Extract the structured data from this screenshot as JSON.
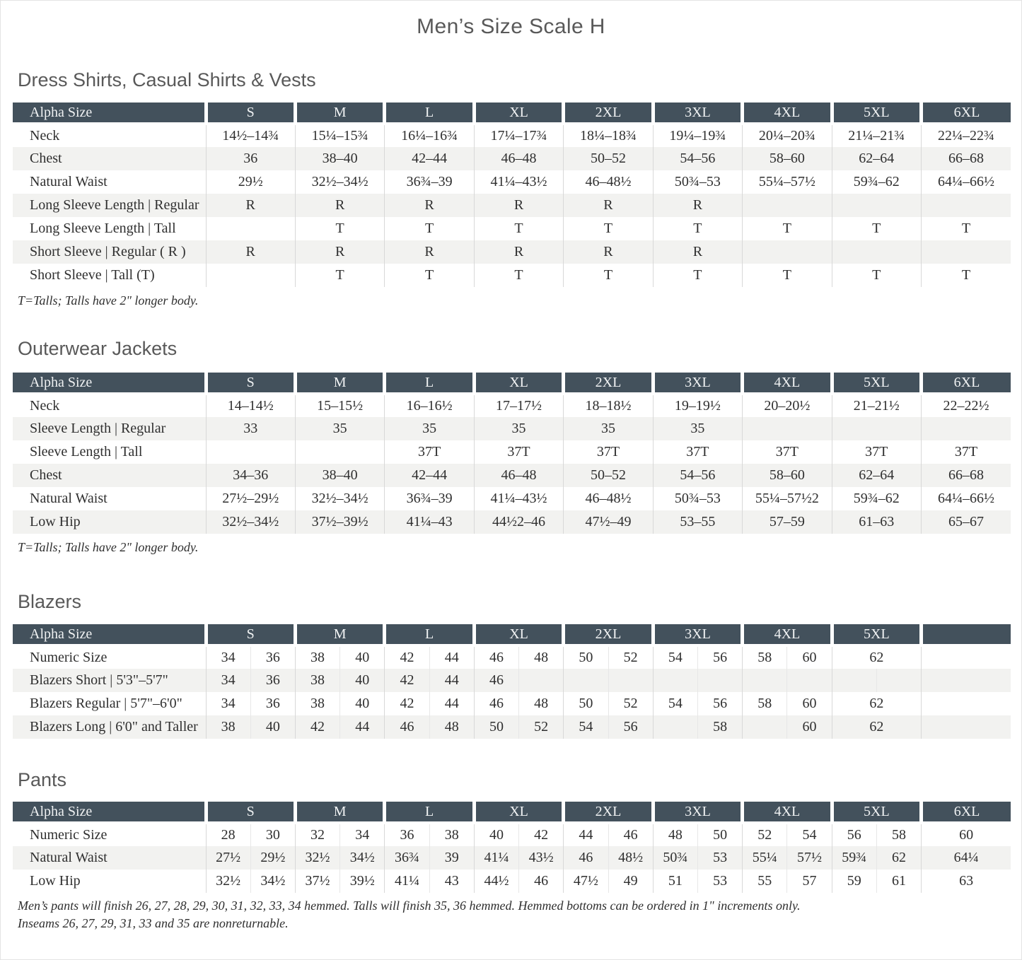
{
  "page_title": "Men’s Size Scale H",
  "colors": {
    "table_header_bg": "#43515c",
    "table_header_text": "#f0f2f3",
    "row_stripe": "#f2f2f0",
    "heading_text": "#595959",
    "body_text": "#2f2f2f"
  },
  "sections": [
    {
      "heading": "Dress Shirts, Casual Shirts & Vests",
      "columns": [
        "Alpha Size",
        "S",
        "M",
        "L",
        "XL",
        "2XL",
        "3XL",
        "4XL",
        "5XL",
        "6XL"
      ],
      "split_columns": false,
      "rows": [
        {
          "label": "Neck",
          "values": [
            "14½–14¾",
            "15¼–15¾",
            "16¼–16¾",
            "17¼–17¾",
            "18¼–18¾",
            "19¼–19¾",
            "20¼–20¾",
            "21¼–21¾",
            "22¼–22¾"
          ]
        },
        {
          "label": "Chest",
          "values": [
            "36",
            "38–40",
            "42–44",
            "46–48",
            "50–52",
            "54–56",
            "58–60",
            "62–64",
            "66–68"
          ]
        },
        {
          "label": "Natural Waist",
          "values": [
            "29½",
            "32½–34½",
            "36¾–39",
            "41¼–43½",
            "46–48½",
            "50¾–53",
            "55¼–57½",
            "59¾–62",
            "64¼–66½"
          ]
        },
        {
          "label": "Long Sleeve Length | Regular",
          "values": [
            "R",
            "R",
            "R",
            "R",
            "R",
            "R",
            "",
            "",
            ""
          ]
        },
        {
          "label": "Long Sleeve Length | Tall",
          "values": [
            "",
            "T",
            "T",
            "T",
            "T",
            "T",
            "T",
            "T",
            "T"
          ]
        },
        {
          "label": "Short Sleeve | Regular ( R )",
          "values": [
            "R",
            "R",
            "R",
            "R",
            "R",
            "R",
            "",
            "",
            ""
          ]
        },
        {
          "label": "Short Sleeve | Tall (T)",
          "values": [
            "",
            "T",
            "T",
            "T",
            "T",
            "T",
            "T",
            "T",
            "T"
          ]
        }
      ],
      "footnotes": [
        "T=Talls; Talls have 2\" longer body."
      ]
    },
    {
      "heading": "Outerwear Jackets",
      "columns": [
        "Alpha Size",
        "S",
        "M",
        "L",
        "XL",
        "2XL",
        "3XL",
        "4XL",
        "5XL",
        "6XL"
      ],
      "split_columns": false,
      "rows": [
        {
          "label": "Neck",
          "values": [
            "14–14½",
            "15–15½",
            "16–16½",
            "17–17½",
            "18–18½",
            "19–19½",
            "20–20½",
            "21–21½",
            "22–22½"
          ]
        },
        {
          "label": "Sleeve Length | Regular",
          "values": [
            "33",
            "35",
            "35",
            "35",
            "35",
            "35",
            "",
            "",
            ""
          ]
        },
        {
          "label": "Sleeve Length | Tall",
          "values": [
            "",
            "",
            "37T",
            "37T",
            "37T",
            "37T",
            "37T",
            "37T",
            "37T"
          ]
        },
        {
          "label": "Chest",
          "values": [
            "34–36",
            "38–40",
            "42–44",
            "46–48",
            "50–52",
            "54–56",
            "58–60",
            "62–64",
            "66–68"
          ]
        },
        {
          "label": "Natural Waist",
          "values": [
            "27½–29½",
            "32½–34½",
            "36¾–39",
            "41¼–43½",
            "46–48½",
            "50¾–53",
            "55¼–57½2",
            "59¾–62",
            "64¼–66½"
          ]
        },
        {
          "label": "Low Hip",
          "values": [
            "32½–34½",
            "37½–39½",
            "41¼–43",
            "44½2–46",
            "47½–49",
            "53–55",
            "57–59",
            "61–63",
            "65–67"
          ]
        }
      ],
      "footnotes": [
        "T=Talls; Talls have 2\" longer body."
      ]
    },
    {
      "heading": "Blazers",
      "columns": [
        "Alpha Size",
        "S",
        "M",
        "L",
        "XL",
        "2XL",
        "3XL",
        "4XL",
        "5XL",
        ""
      ],
      "split_columns": true,
      "rows": [
        {
          "label": "Numeric Size",
          "values": [
            [
              "34",
              "36"
            ],
            [
              "38",
              "40"
            ],
            [
              "42",
              "44"
            ],
            [
              "46",
              "48"
            ],
            [
              "50",
              "52"
            ],
            [
              "54",
              "56"
            ],
            [
              "58",
              "60"
            ],
            [
              "62"
            ],
            [
              ""
            ]
          ]
        },
        {
          "label": "Blazers Short | 5'3\"–5'7\"",
          "values": [
            [
              "34",
              "36"
            ],
            [
              "38",
              "40"
            ],
            [
              "42",
              "44"
            ],
            [
              "46",
              ""
            ],
            [
              "",
              ""
            ],
            [
              "",
              ""
            ],
            [
              "",
              ""
            ],
            [
              "",
              ""
            ],
            [
              ""
            ]
          ]
        },
        {
          "label": "Blazers Regular | 5'7\"–6'0\"",
          "values": [
            [
              "34",
              "36"
            ],
            [
              "38",
              "40"
            ],
            [
              "42",
              "44"
            ],
            [
              "46",
              "48"
            ],
            [
              "50",
              "52"
            ],
            [
              "54",
              "56"
            ],
            [
              "58",
              "60"
            ],
            [
              "62"
            ],
            [
              ""
            ]
          ]
        },
        {
          "label": "Blazers Long | 6'0\" and Taller",
          "values": [
            [
              "38",
              "40"
            ],
            [
              "42",
              "44"
            ],
            [
              "46",
              "48"
            ],
            [
              "50",
              "52"
            ],
            [
              "54",
              "56"
            ],
            [
              "",
              "58"
            ],
            [
              "",
              "60"
            ],
            [
              "62"
            ],
            [
              ""
            ]
          ]
        }
      ],
      "footnotes": []
    },
    {
      "heading": "Pants",
      "columns": [
        "Alpha Size",
        "S",
        "M",
        "L",
        "XL",
        "2XL",
        "3XL",
        "4XL",
        "5XL",
        "6XL"
      ],
      "split_columns": true,
      "rows": [
        {
          "label": "Numeric Size",
          "values": [
            [
              "28",
              "30"
            ],
            [
              "32",
              "34"
            ],
            [
              "36",
              "38"
            ],
            [
              "40",
              "42"
            ],
            [
              "44",
              "46"
            ],
            [
              "48",
              "50"
            ],
            [
              "52",
              "54"
            ],
            [
              "56",
              "58"
            ],
            [
              "60"
            ]
          ]
        },
        {
          "label": "Natural Waist",
          "values": [
            [
              "27½",
              "29½"
            ],
            [
              "32½",
              "34½"
            ],
            [
              "36¾",
              "39"
            ],
            [
              "41¼",
              "43½"
            ],
            [
              "46",
              "48½"
            ],
            [
              "50¾",
              "53"
            ],
            [
              "55¼",
              "57½"
            ],
            [
              "59¾",
              "62"
            ],
            [
              "64¼"
            ]
          ]
        },
        {
          "label": "Low Hip",
          "values": [
            [
              "32½",
              "34½"
            ],
            [
              "37½",
              "39½"
            ],
            [
              "41¼",
              "43"
            ],
            [
              "44½",
              "46"
            ],
            [
              "47½",
              "49"
            ],
            [
              "51",
              "53"
            ],
            [
              "55",
              "57"
            ],
            [
              "59",
              "61"
            ],
            [
              "63"
            ]
          ]
        }
      ],
      "footnotes": [
        "Men’s pants will finish 26, 27, 28, 29, 30, 31, 32, 33, 34 hemmed. Talls will finish 35, 36 hemmed. Hemmed bottoms can be ordered in 1\" increments only.",
        "Inseams 26, 27, 29, 31, 33 and 35 are nonreturnable."
      ]
    }
  ]
}
